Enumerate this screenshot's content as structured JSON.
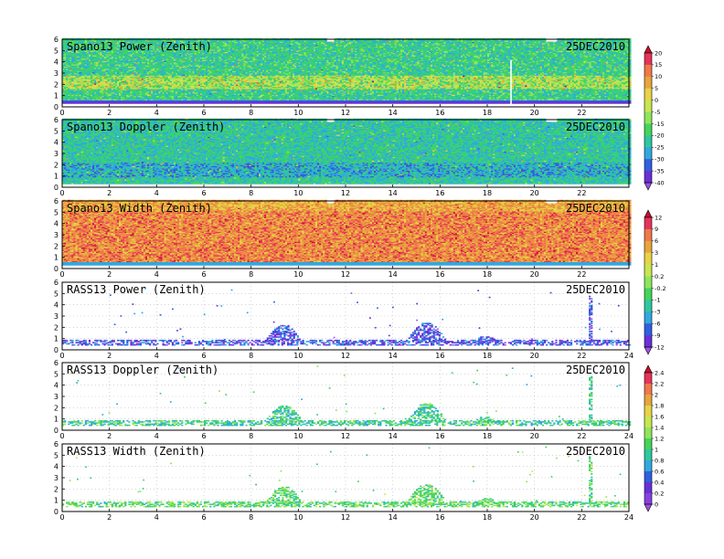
{
  "chart_data": [
    {
      "type": "heatmap",
      "title": "Spano13 Power (Zenith)",
      "date": "25DEC2010",
      "x_ticks": [
        0,
        2,
        4,
        6,
        8,
        10,
        12,
        14,
        16,
        18,
        20,
        22
      ],
      "y_ticks": [
        0,
        1,
        2,
        3,
        4,
        5,
        6
      ],
      "xlim": [
        0,
        24
      ],
      "ylim": [
        0,
        6
      ],
      "colorbar": "power",
      "coverage": "full",
      "base_level": 0.38,
      "bands": [
        [
          1.6,
          2.8,
          0.3
        ]
      ],
      "bottom_band": "purple",
      "gaps": [
        [
          11.2,
          11.5,
          5.7,
          6.0
        ],
        [
          18.9,
          19.0,
          0.3,
          4.2
        ],
        [
          20.4,
          20.9,
          5.7,
          6.0
        ]
      ]
    },
    {
      "type": "heatmap",
      "title": "Spano13 Doppler (Zenith)",
      "date": "25DEC2010",
      "x_ticks": [
        0,
        2,
        4,
        6,
        8,
        10,
        12,
        14,
        16,
        18,
        20,
        22
      ],
      "y_ticks": [
        0,
        1,
        2,
        3,
        4,
        5,
        6
      ],
      "xlim": [
        0,
        24
      ],
      "ylim": [
        0,
        6
      ],
      "colorbar": "power",
      "coverage": "full",
      "base_level": 0.35,
      "bands": [
        [
          0.8,
          2.2,
          -0.12
        ]
      ],
      "gaps": [
        [
          11.2,
          11.5,
          5.7,
          6.0
        ],
        [
          20.4,
          20.9,
          5.7,
          6.0
        ]
      ]
    },
    {
      "type": "heatmap",
      "title": "Spano13 Width (Zenith)",
      "date": "25DEC2010",
      "x_ticks": [
        0,
        2,
        4,
        6,
        8,
        10,
        12,
        14,
        16,
        18,
        20,
        22
      ],
      "y_ticks": [
        0,
        1,
        2,
        3,
        4,
        5,
        6
      ],
      "xlim": [
        0,
        24
      ],
      "ylim": [
        0,
        6
      ],
      "colorbar": "width",
      "coverage": "full",
      "base_level": 0.72,
      "bands": [
        [
          0.5,
          5.0,
          0.12
        ]
      ],
      "bottom_band": "blue",
      "gaps": [
        [
          11.2,
          11.5,
          5.7,
          6.0
        ],
        [
          20.4,
          20.9,
          5.7,
          6.0
        ]
      ]
    },
    {
      "type": "heatmap",
      "title": "RASS13 Power (Zenith)",
      "date": "25DEC2010",
      "x_ticks": [
        0,
        2,
        4,
        6,
        8,
        10,
        12,
        14,
        16,
        18,
        20,
        22,
        24
      ],
      "y_ticks": [
        0,
        1,
        2,
        3,
        4,
        5,
        6
      ],
      "xlim": [
        0,
        24
      ],
      "ylim": [
        0,
        6
      ],
      "colorbar": "width",
      "coverage": "sparse",
      "palette_range": [
        0.05,
        0.28
      ],
      "bursts": [
        [
          8.5,
          10.2,
          2.2
        ],
        [
          14.5,
          16.3,
          2.4
        ],
        [
          17.3,
          18.5,
          1.2
        ],
        [
          22.3,
          22.4,
          4.8
        ]
      ]
    },
    {
      "type": "heatmap",
      "title": "RASS13 Doppler (Zenith)",
      "date": "25DEC2010",
      "x_ticks": [
        0,
        2,
        4,
        6,
        8,
        10,
        12,
        14,
        16,
        18,
        20,
        22,
        24
      ],
      "y_ticks": [
        0,
        1,
        2,
        3,
        4,
        5,
        6
      ],
      "xlim": [
        0,
        24
      ],
      "ylim": [
        0,
        6
      ],
      "colorbar": "rass",
      "coverage": "sparse",
      "palette_range": [
        0.3,
        0.55
      ],
      "bursts": [
        [
          8.5,
          10.2,
          2.2
        ],
        [
          14.5,
          16.3,
          2.4
        ],
        [
          17.3,
          18.5,
          1.2
        ],
        [
          22.3,
          22.4,
          4.8
        ]
      ]
    },
    {
      "type": "heatmap",
      "title": "RASS13 Width (Zenith)",
      "date": "25DEC2010",
      "x_ticks": [
        0,
        2,
        4,
        6,
        8,
        10,
        12,
        14,
        16,
        18,
        20,
        22,
        24
      ],
      "y_ticks": [
        0,
        1,
        2,
        3,
        4,
        5,
        6
      ],
      "xlim": [
        0,
        24
      ],
      "ylim": [
        0,
        6
      ],
      "colorbar": "rass",
      "coverage": "sparse",
      "palette_range": [
        0.35,
        0.6
      ],
      "bursts": [
        [
          8.5,
          10.2,
          2.2
        ],
        [
          14.5,
          16.3,
          2.4
        ],
        [
          17.3,
          18.5,
          1.2
        ],
        [
          22.3,
          22.4,
          4.8
        ]
      ]
    }
  ],
  "colorbars": {
    "power": {
      "labels": [
        "20",
        "15",
        "10",
        "5",
        "0",
        "-5",
        "-15",
        "-20",
        "-25",
        "-30",
        "-35",
        "-40"
      ],
      "colors": [
        "#c8102e",
        "#e6335a",
        "#f0784a",
        "#e8a53c",
        "#e8d246",
        "#c8e650",
        "#8ee65a",
        "#44d45a",
        "#2ec8a0",
        "#30a8e0",
        "#3060e0",
        "#6a30d8",
        "#a050e8"
      ]
    },
    "width": {
      "labels": [
        "12",
        "9",
        "6",
        "3",
        "1",
        "0.2",
        "-0.2",
        "-1",
        "-3",
        "-6",
        "-9",
        "-12"
      ],
      "colors": [
        "#c8102e",
        "#e6335a",
        "#f0784a",
        "#e8a53c",
        "#e8d246",
        "#c8e650",
        "#8ee65a",
        "#44d45a",
        "#2ec8a0",
        "#30a8e0",
        "#3060e0",
        "#6a30d8",
        "#a050e8"
      ]
    },
    "rass": {
      "labels": [
        "2.4",
        "2.2",
        "2",
        "1.8",
        "1.6",
        "1.4",
        "1.2",
        "1",
        "0.8",
        "0.6",
        "0.4",
        "0.2",
        "0"
      ],
      "colors": [
        "#c8102e",
        "#e6335a",
        "#f0784a",
        "#e8a53c",
        "#e8d246",
        "#c8e650",
        "#8ee65a",
        "#44d45a",
        "#2ec8a0",
        "#30a8e0",
        "#3060e0",
        "#6a30d8",
        "#8a40e0",
        "#a050e8"
      ]
    }
  }
}
